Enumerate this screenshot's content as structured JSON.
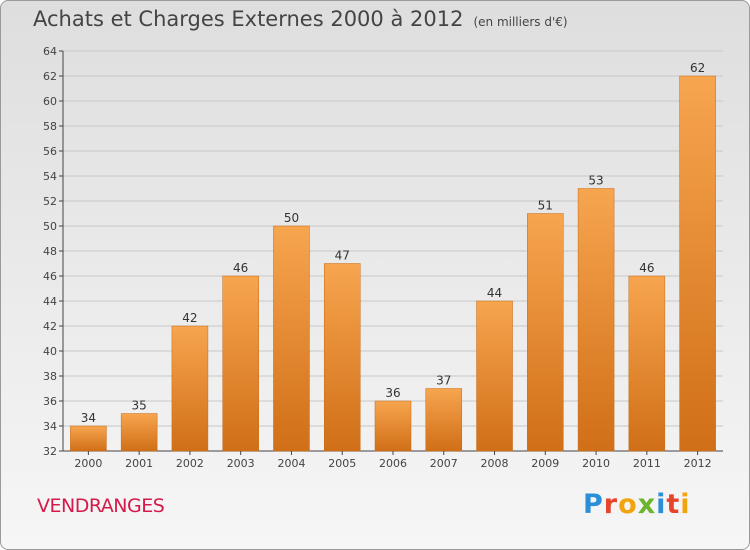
{
  "header": {
    "title": "Achats et Charges Externes 2000 à 2012",
    "subtitle": "(en milliers d'€)"
  },
  "footer": {
    "city": "VENDRANGES",
    "brand": "Proxiti"
  },
  "colors": {
    "bar_light": "#f7a54f",
    "bar_dark": "#d06f17",
    "city": "#d41a4a"
  },
  "chart_data": {
    "type": "bar",
    "categories": [
      "2000",
      "2001",
      "2002",
      "2003",
      "2004",
      "2005",
      "2006",
      "2007",
      "2008",
      "2009",
      "2010",
      "2011",
      "2012"
    ],
    "values": [
      34,
      35,
      42,
      46,
      50,
      47,
      36,
      37,
      44,
      51,
      53,
      46,
      62
    ],
    "ylim": [
      32,
      64
    ],
    "yticks": [
      32,
      34,
      36,
      38,
      40,
      42,
      44,
      46,
      48,
      50,
      52,
      54,
      56,
      58,
      60,
      62,
      64
    ],
    "grid": true,
    "data_labels": true
  }
}
